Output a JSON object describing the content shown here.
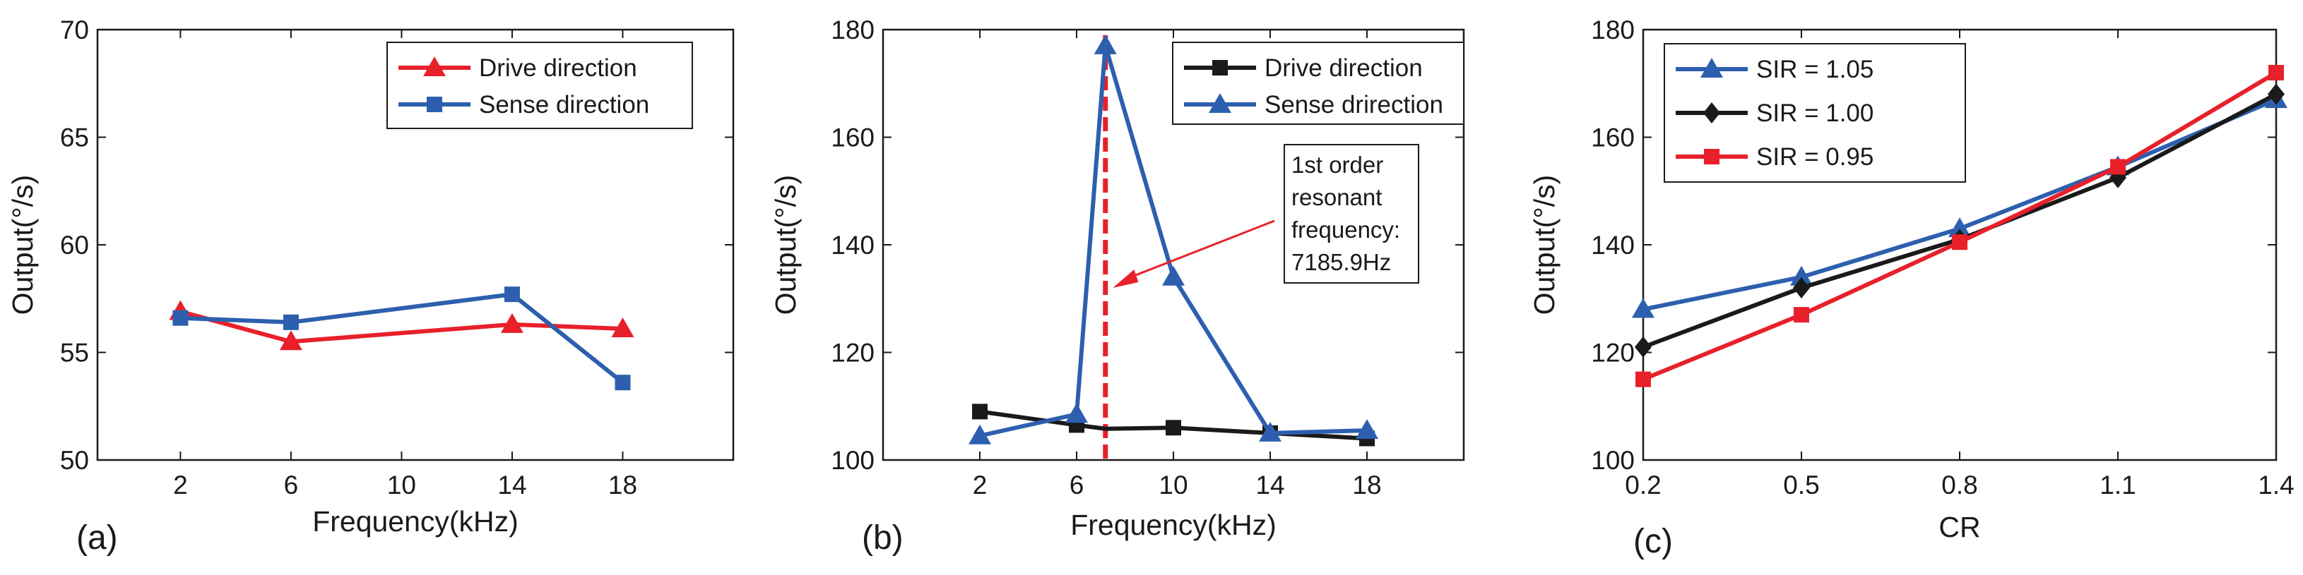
{
  "chart_data": [
    {
      "panel_label": "(a)",
      "type": "line",
      "xlabel": "Frequency(kHz)",
      "ylabel": "Output(°/s)",
      "xlim": [
        -1,
        22
      ],
      "ylim": [
        50,
        70
      ],
      "xticks": [
        2,
        6,
        10,
        14,
        18
      ],
      "yticks": [
        50,
        55,
        60,
        65,
        70
      ],
      "legend_position": "top-right",
      "series": [
        {
          "name": "Drive direction",
          "color": "#e8202a",
          "marker": "triangle",
          "x": [
            2,
            6,
            14,
            18
          ],
          "y": [
            56.9,
            55.5,
            56.3,
            56.1
          ]
        },
        {
          "name": "Sense direction",
          "color": "#2d5fae",
          "marker": "square",
          "x": [
            2,
            6,
            14,
            18
          ],
          "y": [
            56.6,
            56.4,
            57.7,
            53.6
          ]
        }
      ]
    },
    {
      "panel_label": "(b)",
      "type": "line",
      "xlabel": "Frequency(kHz)",
      "ylabel": "Output(°/s)",
      "xlim": [
        -2,
        22
      ],
      "ylim": [
        100,
        180
      ],
      "xticks": [
        2,
        6,
        10,
        14,
        18
      ],
      "yticks": [
        100,
        120,
        140,
        160,
        180
      ],
      "legend_position": "top-right",
      "series": [
        {
          "name": "Drive direction",
          "color": "#1a1a1a",
          "marker": "square",
          "x": [
            2,
            6,
            7.19,
            10,
            14,
            18
          ],
          "y": [
            109,
            106.5,
            105.8,
            106,
            105,
            104
          ]
        },
        {
          "name": "Sense drirection",
          "color": "#2d5fae",
          "marker": "triangle",
          "x": [
            2,
            6,
            7.19,
            10,
            14,
            18
          ],
          "y": [
            104.5,
            108.5,
            177,
            134,
            105,
            105.5
          ]
        }
      ],
      "vline": {
        "x": 7.19,
        "color": "#e8202a"
      },
      "annotation": {
        "lines": [
          "1st order",
          "resonant",
          "frequency:",
          "7185.9Hz"
        ],
        "arrow_to": [
          7.5,
          132
        ]
      }
    },
    {
      "panel_label": "(c)",
      "type": "line",
      "xlabel": "CR",
      "ylabel": "Output(°/s)",
      "xlim": [
        0.2,
        1.4
      ],
      "ylim": [
        100,
        180
      ],
      "xticks": [
        0.2,
        0.5,
        0.8,
        1.1,
        1.4
      ],
      "yticks": [
        100,
        120,
        140,
        160,
        180
      ],
      "legend_position": "top-left",
      "series": [
        {
          "name": "SIR = 1.05",
          "color": "#2d5fae",
          "marker": "triangle",
          "x": [
            0.2,
            0.5,
            0.8,
            1.1,
            1.4
          ],
          "y": [
            128,
            134,
            143,
            154.5,
            167
          ]
        },
        {
          "name": "SIR = 1.00",
          "color": "#1a1a1a",
          "marker": "diamond",
          "x": [
            0.2,
            0.5,
            0.8,
            1.1,
            1.4
          ],
          "y": [
            121,
            132,
            141,
            152.5,
            168
          ]
        },
        {
          "name": "SIR = 0.95",
          "color": "#e8202a",
          "marker": "square",
          "x": [
            0.2,
            0.5,
            0.8,
            1.1,
            1.4
          ],
          "y": [
            115,
            127,
            140.5,
            154.5,
            172
          ]
        }
      ]
    }
  ]
}
